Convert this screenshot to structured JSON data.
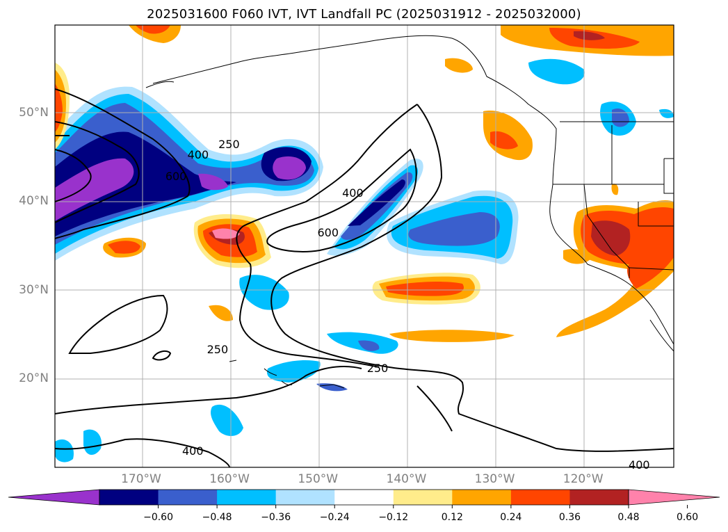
{
  "title": "2025031600 F060 IVT, IVT Landfall PC (2025031912 - 2025032000)",
  "map": {
    "lat_labels": [
      {
        "text": "50°N",
        "lat": 50
      },
      {
        "text": "40°N",
        "lat": 40
      },
      {
        "text": "30°N",
        "lat": 30
      },
      {
        "text": "20°N",
        "lat": 20
      }
    ],
    "lon_labels": [
      {
        "text": "170°W",
        "lon": -170
      },
      {
        "text": "160°W",
        "lon": -160
      },
      {
        "text": "150°W",
        "lon": -150
      },
      {
        "text": "140°W",
        "lon": -140
      },
      {
        "text": "130°W",
        "lon": -130
      },
      {
        "text": "120°W",
        "lon": -120
      }
    ],
    "contour_labels": [
      {
        "text": "250",
        "lon": -160,
        "lat": 46.5
      },
      {
        "text": "400",
        "lon": -163.5,
        "lat": 45.3
      },
      {
        "text": "600",
        "lon": -166,
        "lat": 42.9
      },
      {
        "text": "400",
        "lon": -146,
        "lat": 41
      },
      {
        "text": "600",
        "lon": -148.8,
        "lat": 36.5
      },
      {
        "text": "250",
        "lon": -161.3,
        "lat": 23.3
      },
      {
        "text": "250",
        "lon": -143.2,
        "lat": 21.2
      },
      {
        "text": "400",
        "lon": -164.1,
        "lat": 11.8
      },
      {
        "text": "400",
        "lon": -113.6,
        "lat": 10.2
      }
    ]
  },
  "colorbar": {
    "ticks": [
      "−0.60",
      "−0.48",
      "−0.36",
      "−0.24",
      "−0.12",
      "0.12",
      "0.24",
      "0.36",
      "0.48",
      "0.60"
    ],
    "colors": [
      "#9932cc",
      "#000080",
      "#3a5fcd",
      "#00bfff",
      "#b0e2ff",
      "#ffffff",
      "#ffec8b",
      "#ffa500",
      "#ff4500",
      "#b22222",
      "#ff82ab"
    ]
  }
}
